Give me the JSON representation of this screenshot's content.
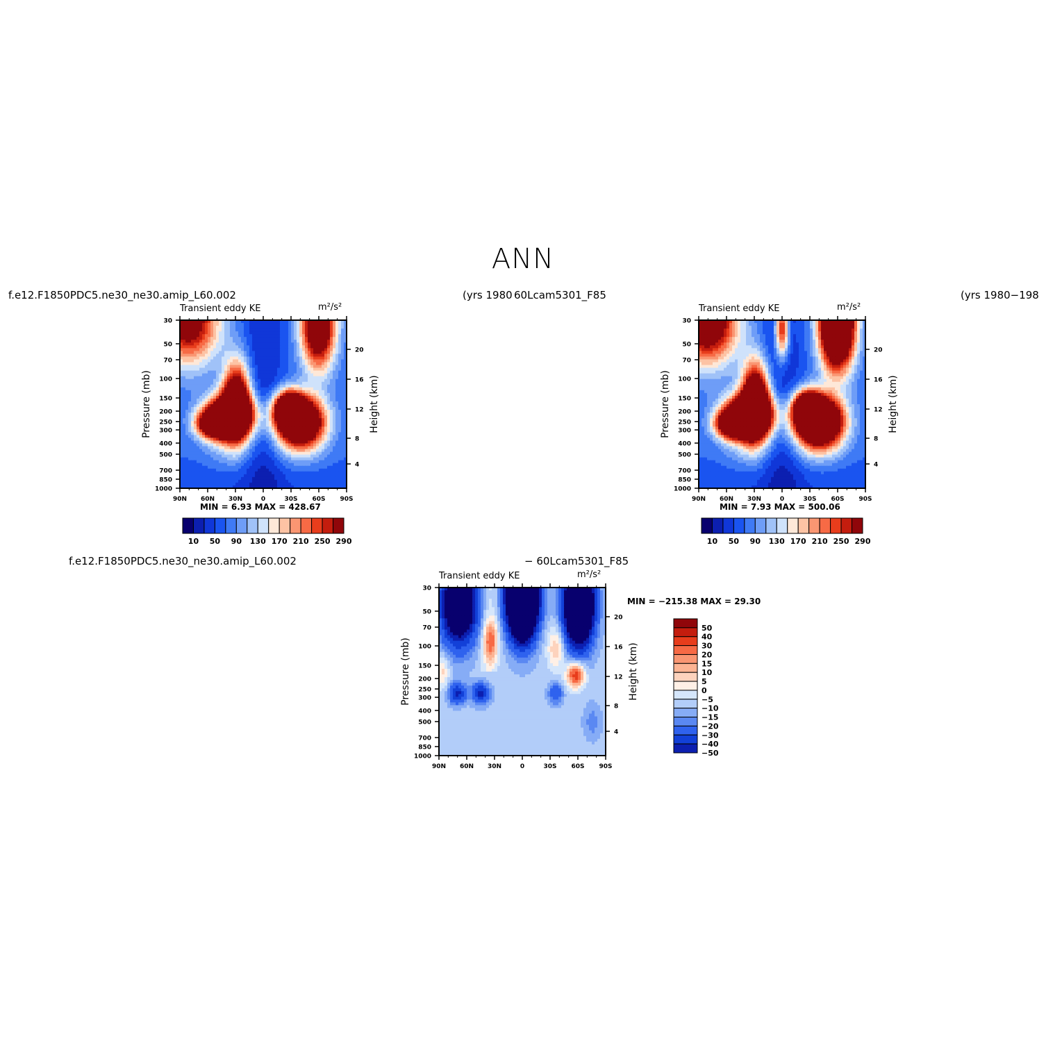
{
  "page": {
    "title": "ANN"
  },
  "palettes": {
    "abs": [
      "#08006e",
      "#0c1fb0",
      "#1037d8",
      "#1a54f0",
      "#3f7af5",
      "#6e9df7",
      "#a0c2f8",
      "#cfe2fb",
      "#fee8d8",
      "#fdc3a4",
      "#fa9672",
      "#f76a45",
      "#e83d1c",
      "#c41d0e",
      "#90060a"
    ],
    "diff": [
      "#90060a",
      "#c41d0e",
      "#e83d1c",
      "#f76a45",
      "#fa9672",
      "#fdb493",
      "#fdd3bd",
      "#fff0e6",
      "#d5e6fb",
      "#b2cdf9",
      "#86acf6",
      "#5a88f2",
      "#2f62ee",
      "#1240d8",
      "#0c1fb0",
      "#08006e"
    ]
  },
  "labels": {
    "left_case": "f.e12.F1850PDC5.ne30_ne30.amip_L60.002",
    "left_years": "(yrs 1980",
    "right_case": "60Lcam5301_F85",
    "right_years": "(yrs 1980−198",
    "diff_case_left": "f.e12.F1850PDC5.ne30_ne30.amip_L60.002",
    "diff_case_right": "− 60Lcam5301_F85"
  },
  "panels": [
    {
      "id": "panel-left",
      "variable": "Transient eddy KE",
      "units": "m²/s²",
      "minmax": "MIN =    6.93   MAX = 428.67",
      "ylabel": "Pressure (mb)",
      "y2label": "Height (km)",
      "xticks": [
        "90N",
        "60N",
        "30N",
        "0",
        "30S",
        "60S",
        "90S"
      ],
      "yticks": [
        "30",
        "50",
        "70",
        "100",
        "150",
        "200",
        "250",
        "300",
        "400",
        "500",
        "700",
        "850",
        "1000"
      ],
      "y2ticks": [
        "20",
        "16",
        "12",
        "8",
        "4"
      ],
      "colorbar_labels": [
        "10",
        "50",
        "90",
        "130",
        "170",
        "210",
        "250",
        "290"
      ]
    },
    {
      "id": "panel-right",
      "variable": "Transient eddy KE",
      "units": "m²/s²",
      "minmax": "MIN =    7.93   MAX = 500.06",
      "ylabel": "Pressure (mb)",
      "y2label": "Height (km)",
      "xticks": [
        "90N",
        "60N",
        "30N",
        "0",
        "30S",
        "60S",
        "90S"
      ],
      "yticks": [
        "30",
        "50",
        "70",
        "100",
        "150",
        "200",
        "250",
        "300",
        "400",
        "500",
        "700",
        "850",
        "1000"
      ],
      "y2ticks": [
        "20",
        "16",
        "12",
        "8",
        "4"
      ],
      "colorbar_labels": [
        "10",
        "50",
        "90",
        "130",
        "170",
        "210",
        "250",
        "290"
      ]
    },
    {
      "id": "panel-diff",
      "variable": "Transient eddy KE",
      "units": "m²/s²",
      "minmax": "MIN = −215.38   MAX =   29.30",
      "ylabel": "Pressure (mb)",
      "y2label": "Height (km)",
      "xticks": [
        "90N",
        "60N",
        "30N",
        "0",
        "30S",
        "60S",
        "90S"
      ],
      "yticks": [
        "30",
        "50",
        "70",
        "100",
        "150",
        "200",
        "250",
        "300",
        "400",
        "500",
        "700",
        "850",
        "1000"
      ],
      "y2ticks": [
        "20",
        "16",
        "12",
        "8",
        "4"
      ],
      "colorbar_labels": [
        "50",
        "40",
        "30",
        "20",
        "15",
        "10",
        "5",
        "0",
        "−5",
        "−10",
        "−15",
        "−20",
        "−30",
        "−40",
        "−50"
      ]
    }
  ],
  "chart_data": [
    {
      "type": "heatmap",
      "title": "Transient eddy KE",
      "units": "m²/s²",
      "x": [
        "90N",
        "60N",
        "30N",
        "0",
        "30S",
        "60S",
        "90S"
      ],
      "ylabel": "Pressure (mb)",
      "y2label": "Height (km)",
      "min": 6.93,
      "max": 428.67,
      "colorbar_levels": [
        10,
        30,
        50,
        70,
        90,
        110,
        130,
        150,
        170,
        190,
        210,
        230,
        250,
        270,
        290
      ],
      "features": [
        {
          "lat": 30,
          "pressure": 250,
          "value": 400
        },
        {
          "lat": -50,
          "pressure": 300,
          "value": 420
        },
        {
          "lat": -60,
          "pressure": 30,
          "value": 330
        },
        {
          "lat": 85,
          "pressure": 30,
          "value": 250
        }
      ]
    },
    {
      "type": "heatmap",
      "title": "Transient eddy KE",
      "units": "m²/s²",
      "x": [
        "90N",
        "60N",
        "30N",
        "0",
        "30S",
        "60S",
        "90S"
      ],
      "ylabel": "Pressure (mb)",
      "y2label": "Height (km)",
      "min": 7.93,
      "max": 500.06,
      "colorbar_levels": [
        10,
        30,
        50,
        70,
        90,
        110,
        130,
        150,
        170,
        190,
        210,
        230,
        250,
        270,
        290
      ],
      "features": [
        {
          "lat": 35,
          "pressure": 250,
          "value": 420
        },
        {
          "lat": -45,
          "pressure": 300,
          "value": 480
        },
        {
          "lat": -60,
          "pressure": 30,
          "value": 500
        },
        {
          "lat": 80,
          "pressure": 30,
          "value": 300
        },
        {
          "lat": 5,
          "pressure": 40,
          "value": 200
        }
      ]
    },
    {
      "type": "heatmap",
      "title": "Transient eddy KE",
      "units": "m²/s²",
      "x": [
        "90N",
        "60N",
        "30N",
        "0",
        "30S",
        "60S",
        "90S"
      ],
      "ylabel": "Pressure (mb)",
      "y2label": "Height (km)",
      "min": -215.38,
      "max": 29.3,
      "colorbar_levels": [
        50,
        40,
        30,
        20,
        15,
        10,
        5,
        0,
        -5,
        -10,
        -15,
        -20,
        -30,
        -40,
        -50
      ],
      "features": [
        {
          "lat": 0,
          "pressure": 40,
          "value": -215
        },
        {
          "lat": -60,
          "pressure": 40,
          "value": -150
        },
        {
          "lat": 80,
          "pressure": 40,
          "value": -100
        },
        {
          "lat": 30,
          "pressure": 100,
          "value": 25
        },
        {
          "lat": -60,
          "pressure": 220,
          "value": 29
        },
        {
          "lat": 75,
          "pressure": 300,
          "value": -30
        },
        {
          "lat": 50,
          "pressure": 300,
          "value": -30
        }
      ]
    }
  ]
}
